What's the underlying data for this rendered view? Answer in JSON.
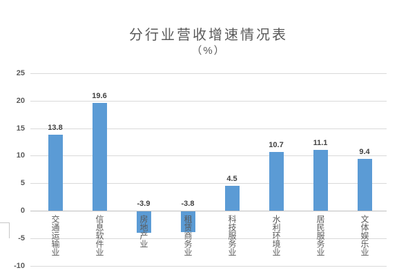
{
  "chart_data": {
    "type": "bar",
    "title": "分行业营收增速情况表",
    "subtitle": "（%）",
    "categories": [
      "交通运输业",
      "信息软件业",
      "房地产业",
      "租赁商务业",
      "科技服务业",
      "水利环境业",
      "居民服务业",
      "文体娱乐业"
    ],
    "values": [
      13.8,
      19.6,
      -3.9,
      -3.8,
      4.5,
      10.7,
      11.1,
      9.4
    ],
    "data_labels": [
      "13.8",
      "19.6",
      "-3.9",
      "-3.8",
      "4.5",
      "10.7",
      "11.1",
      "9.4"
    ],
    "y_ticks": [
      25,
      20,
      15,
      10,
      5,
      0,
      -5,
      -10
    ],
    "ylim": [
      -10,
      25
    ],
    "xlabel": "",
    "ylabel": "",
    "grid": true,
    "legend_position": "none",
    "colors": {
      "bar": "#5b9bd5",
      "data_label": "#404040",
      "axis_text": "#595959",
      "title_text": "#595959",
      "gridline": "#d9d9d9",
      "axis_line": "#bfbfbf"
    }
  }
}
